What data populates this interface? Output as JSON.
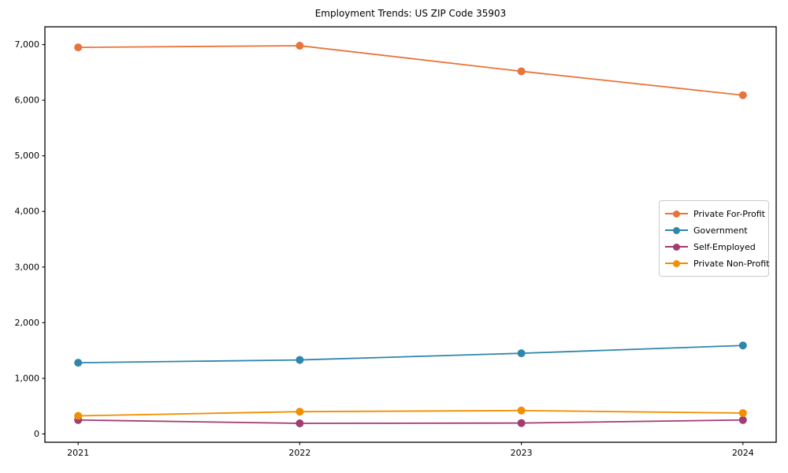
{
  "figure": {
    "background": "#ffffff",
    "axes_edge_color": "#000000",
    "tick_color": "#000000"
  },
  "chart_data": {
    "type": "line",
    "title": "Employment Trends: US ZIP Code 35903",
    "xlabel": "",
    "ylabel": "",
    "x": [
      2021,
      2022,
      2023,
      2024
    ],
    "x_tick_labels": [
      "2021",
      "2022",
      "2023",
      "2024"
    ],
    "y_ticks": [
      0,
      1000,
      2000,
      3000,
      4000,
      5000,
      6000,
      7000
    ],
    "y_tick_labels": [
      "0",
      "1,000",
      "2,000",
      "3,000",
      "4,000",
      "5,000",
      "6,000",
      "7,000"
    ],
    "xlim": [
      2020.85,
      2024.15
    ],
    "ylim": [
      -150,
      7320
    ],
    "grid": false,
    "legend_position": "center-right",
    "series": [
      {
        "name": "Private For-Profit",
        "color": "#E8743B",
        "values": [
          6950,
          6980,
          6520,
          6090
        ]
      },
      {
        "name": "Government",
        "color": "#2E86AB",
        "values": [
          1280,
          1330,
          1450,
          1590
        ]
      },
      {
        "name": "Self-Employed",
        "color": "#A23B72",
        "values": [
          250,
          190,
          195,
          250
        ]
      },
      {
        "name": "Private Non-Profit",
        "color": "#F18F01",
        "values": [
          325,
          400,
          420,
          375
        ]
      }
    ]
  }
}
